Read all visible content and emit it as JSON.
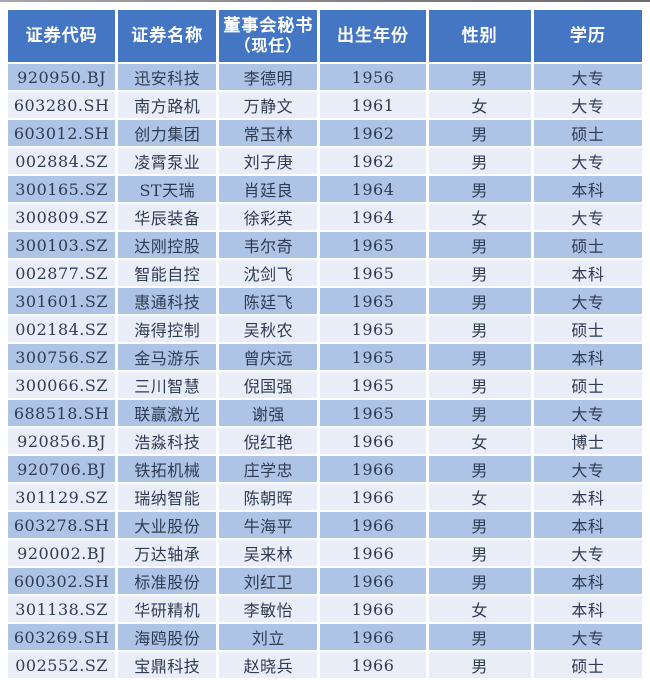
{
  "colors": {
    "header_bg": "#4476C4",
    "header_text": "#FFFFFF",
    "row_odd_bg": "#AEC4E6",
    "row_even_bg": "#E9EDF8",
    "cell_text": "#2F3B52"
  },
  "table": {
    "columns": [
      "证券代码",
      "证券名称",
      "董事会秘书",
      "出生年份",
      "性别",
      "学历"
    ],
    "col3_sub": "（现任）"
  },
  "chart_data": {
    "type": "table",
    "title": "",
    "columns": [
      "证券代码",
      "证券名称",
      "董事会秘书（现任）",
      "出生年份",
      "性别",
      "学历"
    ],
    "rows": [
      [
        "920950.BJ",
        "迅安科技",
        "李德明",
        "1956",
        "男",
        "大专"
      ],
      [
        "603280.SH",
        "南方路机",
        "万静文",
        "1961",
        "女",
        "大专"
      ],
      [
        "603012.SH",
        "创力集团",
        "常玉林",
        "1962",
        "男",
        "硕士"
      ],
      [
        "002884.SZ",
        "凌霄泵业",
        "刘子庚",
        "1962",
        "男",
        "大专"
      ],
      [
        "300165.SZ",
        "ST天瑞",
        "肖廷良",
        "1964",
        "男",
        "本科"
      ],
      [
        "300809.SZ",
        "华辰装备",
        "徐彩英",
        "1964",
        "女",
        "大专"
      ],
      [
        "300103.SZ",
        "达刚控股",
        "韦尔奇",
        "1965",
        "男",
        "硕士"
      ],
      [
        "002877.SZ",
        "智能自控",
        "沈剑飞",
        "1965",
        "男",
        "本科"
      ],
      [
        "301601.SZ",
        "惠通科技",
        "陈廷飞",
        "1965",
        "男",
        "大专"
      ],
      [
        "002184.SZ",
        "海得控制",
        "吴秋农",
        "1965",
        "男",
        "硕士"
      ],
      [
        "300756.SZ",
        "金马游乐",
        "曾庆远",
        "1965",
        "男",
        "本科"
      ],
      [
        "300066.SZ",
        "三川智慧",
        "倪国强",
        "1965",
        "男",
        "硕士"
      ],
      [
        "688518.SH",
        "联赢激光",
        "谢强",
        "1965",
        "男",
        "大专"
      ],
      [
        "920856.BJ",
        "浩淼科技",
        "倪红艳",
        "1966",
        "女",
        "博士"
      ],
      [
        "920706.BJ",
        "铁拓机械",
        "庄学忠",
        "1966",
        "男",
        "大专"
      ],
      [
        "301129.SZ",
        "瑞纳智能",
        "陈朝晖",
        "1966",
        "女",
        "本科"
      ],
      [
        "603278.SH",
        "大业股份",
        "牛海平",
        "1966",
        "男",
        "本科"
      ],
      [
        "920002.BJ",
        "万达轴承",
        "吴来林",
        "1966",
        "男",
        "大专"
      ],
      [
        "600302.SH",
        "标准股份",
        "刘红卫",
        "1966",
        "男",
        "本科"
      ],
      [
        "301138.SZ",
        "华研精机",
        "李敏怡",
        "1966",
        "女",
        "本科"
      ],
      [
        "603269.SH",
        "海鸥股份",
        "刘立",
        "1966",
        "男",
        "大专"
      ],
      [
        "002552.SZ",
        "宝鼎科技",
        "赵晓兵",
        "1966",
        "男",
        "硕士"
      ]
    ]
  }
}
